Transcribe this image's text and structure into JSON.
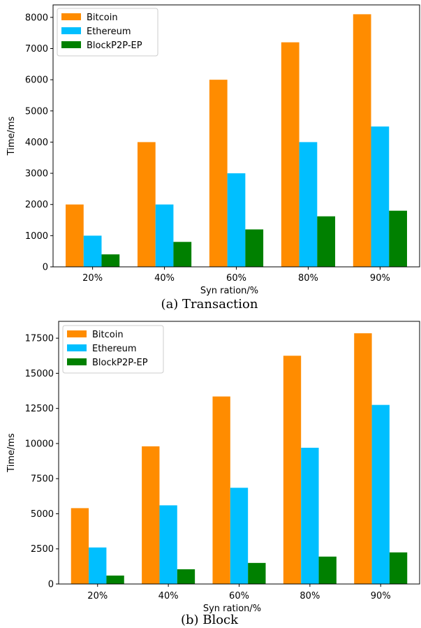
{
  "chart_data": [
    {
      "type": "bar",
      "caption": "(a)  Transaction",
      "xlabel": "Syn ration/%",
      "ylabel": "Time/ms",
      "categories": [
        "20%",
        "40%",
        "60%",
        "80%",
        "90%"
      ],
      "ylim": [
        0,
        8400
      ],
      "yticks": [
        0,
        1000,
        2000,
        3000,
        4000,
        5000,
        6000,
        7000,
        8000
      ],
      "legend_position": "top-left",
      "series": [
        {
          "name": "Bitcoin",
          "color": "#ff8c00",
          "values": [
            2000,
            4000,
            6000,
            7200,
            8100
          ]
        },
        {
          "name": "Ethereum",
          "color": "#00bfff",
          "values": [
            1000,
            2000,
            3000,
            4000,
            4500
          ]
        },
        {
          "name": "BlockP2P-EP",
          "color": "#008000",
          "values": [
            400,
            800,
            1200,
            1620,
            1800
          ]
        }
      ]
    },
    {
      "type": "bar",
      "caption": "(b)  Block",
      "xlabel": "Syn ration/%",
      "ylabel": "Time/ms",
      "categories": [
        "20%",
        "40%",
        "60%",
        "80%",
        "90%"
      ],
      "ylim": [
        0,
        18700
      ],
      "yticks": [
        0,
        2500,
        5000,
        7500,
        10000,
        12500,
        15000,
        17500
      ],
      "legend_position": "top-left",
      "series": [
        {
          "name": "Bitcoin",
          "color": "#ff8c00",
          "values": [
            5400,
            9800,
            13350,
            16250,
            17850
          ]
        },
        {
          "name": "Ethereum",
          "color": "#00bfff",
          "values": [
            2600,
            5600,
            6850,
            9700,
            12750
          ]
        },
        {
          "name": "BlockP2P-EP",
          "color": "#008000",
          "values": [
            600,
            1050,
            1500,
            1950,
            2250
          ]
        }
      ]
    }
  ]
}
